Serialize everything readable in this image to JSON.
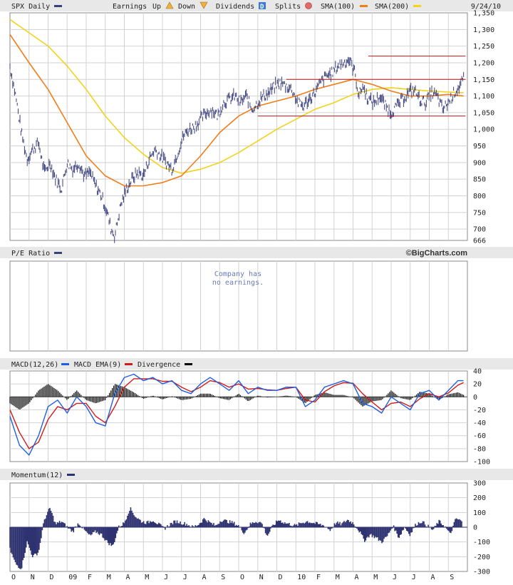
{
  "header": {
    "ticker_label": "SPX Daily",
    "earnings_label": "Earnings",
    "up_label": "Up",
    "down_label": "Down",
    "dividends_label": "Dividends",
    "dividends_badge": "D",
    "splits_label": "Splits",
    "sma100_label": "SMA(100)",
    "sma200_label": "SMA(200)",
    "date": "9/24/10"
  },
  "colors": {
    "price": "#3a3f7d",
    "sma100": "#f07d1a",
    "sma200": "#f2d21a",
    "macd": "#1f5fe0",
    "macd_ema": "#d11a1a",
    "divergence": "#000000",
    "momentum": "#2e3270",
    "resistance": "#b01818"
  },
  "pe_panel": {
    "title": "P/E Ratio",
    "brand": "©BigCharts.com",
    "note_line1": "Company has",
    "note_line2": "no earnings."
  },
  "macd_panel": {
    "title": "MACD(12,26)",
    "ema_label": "MACD EMA(9)",
    "divergence_label": "Divergence"
  },
  "momentum_panel": {
    "title": "Momentum(12)"
  },
  "chart_data": [
    {
      "type": "line",
      "title": "SPX Daily",
      "ylim": [
        666,
        1350
      ],
      "y_ticks": [
        "1,350",
        "1,300",
        "1,250",
        "1,200",
        "1,150",
        "1,100",
        "1,050",
        "1,000",
        "950",
        "900",
        "850",
        "800",
        "750",
        "700",
        "666"
      ],
      "y_tick_values": [
        1350,
        1300,
        1250,
        1200,
        1150,
        1100,
        1050,
        1000,
        950,
        900,
        850,
        800,
        750,
        700,
        666
      ],
      "x_ticks": [
        "O",
        "N",
        "D",
        "09",
        "F",
        "M",
        "A",
        "M",
        "J",
        "J",
        "A",
        "S",
        "O",
        "N",
        "D",
        "10",
        "F",
        "M",
        "A",
        "M",
        "J",
        "J",
        "A",
        "S"
      ],
      "series": [
        {
          "name": "SPX",
          "x": [
            0,
            0.3,
            0.6,
            0.9,
            1.2,
            1.5,
            1.8,
            2.1,
            2.4,
            2.7,
            3.0,
            3.3,
            3.6,
            3.9,
            4.2,
            4.5,
            4.8,
            5.1,
            5.3,
            5.5,
            5.8,
            6.1,
            6.4,
            6.7,
            7.0,
            7.3,
            7.6,
            7.9,
            8.2,
            8.5,
            8.8,
            9.1,
            9.4,
            9.7,
            10.0,
            10.3,
            10.6,
            10.9,
            11.2,
            11.5,
            11.8,
            12.1,
            12.4,
            12.7,
            13.0,
            13.3,
            13.6,
            13.9,
            14.2,
            14.5,
            14.8,
            15.1,
            15.4,
            15.7,
            16.0,
            16.3,
            16.6,
            16.9,
            17.2,
            17.5,
            17.8,
            18.1,
            18.3,
            18.5,
            18.8,
            19.1,
            19.4,
            19.7,
            20.0,
            20.3,
            20.6,
            20.9,
            21.2,
            21.5,
            21.8,
            22.1,
            22.4,
            22.7,
            23.0,
            23.3,
            23.6,
            23.8
          ],
          "values": [
            1190,
            1100,
            990,
            910,
            940,
            960,
            870,
            900,
            850,
            820,
            900,
            880,
            900,
            860,
            870,
            830,
            800,
            750,
            700,
            680,
            770,
            820,
            850,
            870,
            860,
            910,
            940,
            920,
            900,
            880,
            930,
            980,
            1000,
            1010,
            1030,
            1050,
            1060,
            1040,
            1080,
            1090,
            1100,
            1080,
            1100,
            1060,
            1080,
            1100,
            1110,
            1130,
            1140,
            1130,
            1120,
            1080,
            1070,
            1090,
            1110,
            1140,
            1160,
            1170,
            1190,
            1200,
            1210,
            1170,
            1100,
            1130,
            1090,
            1080,
            1100,
            1070,
            1050,
            1070,
            1090,
            1110,
            1120,
            1090,
            1080,
            1110,
            1100,
            1060,
            1080,
            1110,
            1130,
            1150
          ]
        },
        {
          "name": "SMA(100)",
          "x": [
            0,
            1,
            2,
            3,
            4,
            5,
            6,
            7,
            8,
            9,
            10,
            11,
            12,
            13,
            14,
            15,
            16,
            17,
            18,
            19,
            20,
            21,
            22,
            23,
            23.8
          ],
          "values": [
            1285,
            1200,
            1120,
            1020,
            920,
            860,
            830,
            830,
            840,
            860,
            920,
            990,
            1040,
            1070,
            1085,
            1100,
            1120,
            1135,
            1150,
            1135,
            1115,
            1100,
            1100,
            1105,
            1100
          ]
        },
        {
          "name": "SMA(200)",
          "x": [
            0,
            1,
            2,
            3,
            4,
            5,
            6,
            7,
            8,
            9,
            10,
            11,
            12,
            13,
            14,
            15,
            16,
            17,
            18,
            19,
            20,
            21,
            22,
            23,
            23.8
          ],
          "values": [
            1330,
            1290,
            1250,
            1190,
            1120,
            1040,
            975,
            925,
            885,
            868,
            880,
            900,
            930,
            965,
            1000,
            1030,
            1060,
            1080,
            1105,
            1120,
            1125,
            1120,
            1115,
            1112,
            1110
          ]
        }
      ],
      "reference_lines": [
        {
          "y": 1220,
          "x_start": 18.8,
          "x_end": 23.9
        },
        {
          "y": 1150,
          "x_start": 14.5,
          "x_end": 23.9
        },
        {
          "y": 1040,
          "x_start": 13.0,
          "x_end": 23.9
        }
      ]
    },
    {
      "type": "line",
      "title": "MACD(12,26)",
      "ylim": [
        -100,
        40
      ],
      "y_ticks": [
        "40",
        "20",
        "0",
        "-20",
        "-40",
        "-60",
        "-80",
        "-100"
      ],
      "y_tick_values": [
        40,
        20,
        0,
        -20,
        -40,
        -60,
        -80,
        -100
      ],
      "series": [
        {
          "name": "MACD(12,26)",
          "x": [
            0,
            0.5,
            1.0,
            1.5,
            2.0,
            2.5,
            3.0,
            3.5,
            4.0,
            4.5,
            5.0,
            5.5,
            6.0,
            6.5,
            7.0,
            7.5,
            8.0,
            8.5,
            9.0,
            9.5,
            10.0,
            10.5,
            11.0,
            11.5,
            12.0,
            12.5,
            13.0,
            13.5,
            14.0,
            14.5,
            15.0,
            15.5,
            16.0,
            16.5,
            17.0,
            17.5,
            18.0,
            18.5,
            19.0,
            19.5,
            20.0,
            20.5,
            21.0,
            21.5,
            22.0,
            22.5,
            23.0,
            23.5,
            23.8
          ],
          "values": [
            -30,
            -75,
            -90,
            -60,
            -15,
            -5,
            -25,
            0,
            -15,
            -40,
            -45,
            5,
            30,
            35,
            25,
            30,
            20,
            25,
            10,
            5,
            20,
            30,
            20,
            10,
            25,
            5,
            15,
            10,
            10,
            15,
            15,
            -15,
            -5,
            15,
            20,
            25,
            20,
            -10,
            -15,
            -25,
            0,
            -10,
            -20,
            5,
            10,
            -5,
            10,
            25,
            25
          ]
        },
        {
          "name": "MACD EMA(9)",
          "x": [
            0,
            0.5,
            1.0,
            1.5,
            2.0,
            2.5,
            3.0,
            3.5,
            4.0,
            4.5,
            5.0,
            5.5,
            6.0,
            6.5,
            7.0,
            7.5,
            8.0,
            8.5,
            9.0,
            9.5,
            10.0,
            10.5,
            11.0,
            11.5,
            12.0,
            12.5,
            13.0,
            13.5,
            14.0,
            14.5,
            15.0,
            15.5,
            16.0,
            16.5,
            17.0,
            17.5,
            18.0,
            18.5,
            19.0,
            19.5,
            20.0,
            20.5,
            21.0,
            21.5,
            22.0,
            22.5,
            23.0,
            23.5,
            23.8
          ],
          "values": [
            -20,
            -55,
            -80,
            -70,
            -35,
            -15,
            -20,
            -10,
            -10,
            -30,
            -40,
            -15,
            15,
            28,
            28,
            28,
            24,
            24,
            15,
            8,
            15,
            25,
            22,
            15,
            20,
            12,
            13,
            11,
            10,
            13,
            15,
            -5,
            -8,
            8,
            17,
            22,
            21,
            5,
            -8,
            -20,
            -10,
            -8,
            -15,
            -3,
            5,
            0,
            6,
            18,
            22
          ]
        },
        {
          "name": "Divergence",
          "x": [
            0,
            0.5,
            1.0,
            1.5,
            2.0,
            2.5,
            3.0,
            3.5,
            4.0,
            4.5,
            5.0,
            5.5,
            6.0,
            6.5,
            7.0,
            7.5,
            8.0,
            8.5,
            9.0,
            9.5,
            10.0,
            10.5,
            11.0,
            11.5,
            12.0,
            12.5,
            13.0,
            13.5,
            14.0,
            14.5,
            15.0,
            15.5,
            16.0,
            16.5,
            17.0,
            17.5,
            18.0,
            18.5,
            19.0,
            19.5,
            20.0,
            20.5,
            21.0,
            21.5,
            22.0,
            22.5,
            23.0,
            23.5,
            23.8
          ],
          "values": [
            -10,
            -20,
            -10,
            10,
            20,
            10,
            -5,
            10,
            -5,
            -10,
            -5,
            20,
            15,
            7,
            -3,
            2,
            -4,
            1,
            -5,
            -3,
            5,
            5,
            -2,
            -5,
            5,
            -7,
            2,
            -1,
            0,
            2,
            0,
            -10,
            3,
            7,
            3,
            3,
            -1,
            -15,
            -7,
            -5,
            10,
            -2,
            -5,
            8,
            5,
            -5,
            4,
            7,
            3
          ]
        }
      ]
    },
    {
      "type": "area",
      "title": "Momentum(12)",
      "ylim": [
        -300,
        300
      ],
      "y_ticks": [
        "300",
        "200",
        "100",
        "0",
        "-100",
        "-200",
        "-300"
      ],
      "y_tick_values": [
        300,
        200,
        100,
        0,
        -100,
        -200,
        -300
      ],
      "x_ticks": [
        "O",
        "N",
        "D",
        "09",
        "F",
        "M",
        "A",
        "M",
        "J",
        "J",
        "A",
        "S",
        "O",
        "N",
        "D",
        "10",
        "F",
        "M",
        "A",
        "M",
        "J",
        "J",
        "A",
        "S"
      ],
      "series": [
        {
          "name": "Momentum(12)",
          "x": [
            0,
            0.3,
            0.6,
            0.9,
            1.2,
            1.5,
            1.8,
            2.1,
            2.4,
            2.7,
            3.0,
            3.3,
            3.6,
            3.9,
            4.2,
            4.5,
            4.8,
            5.1,
            5.4,
            5.7,
            6.0,
            6.3,
            6.6,
            6.9,
            7.2,
            7.5,
            7.8,
            8.1,
            8.4,
            8.7,
            9.0,
            9.3,
            9.6,
            9.9,
            10.2,
            10.5,
            10.8,
            11.1,
            11.4,
            11.7,
            12.0,
            12.3,
            12.6,
            12.9,
            13.2,
            13.5,
            13.8,
            14.1,
            14.4,
            14.7,
            15.0,
            15.3,
            15.6,
            15.9,
            16.2,
            16.5,
            16.8,
            17.1,
            17.4,
            17.7,
            18.0,
            18.3,
            18.6,
            18.9,
            19.2,
            19.5,
            19.8,
            20.1,
            20.4,
            20.7,
            21.0,
            21.3,
            21.6,
            21.9,
            22.2,
            22.5,
            22.8,
            23.1,
            23.4,
            23.7
          ],
          "values": [
            -150,
            -250,
            -280,
            -100,
            -200,
            -170,
            50,
            130,
            20,
            40,
            0,
            -30,
            30,
            -20,
            -60,
            -30,
            -50,
            -100,
            -130,
            0,
            30,
            130,
            70,
            40,
            30,
            50,
            20,
            -10,
            20,
            40,
            30,
            20,
            0,
            20,
            60,
            30,
            10,
            50,
            40,
            30,
            10,
            -40,
            20,
            40,
            30,
            -60,
            10,
            50,
            30,
            20,
            10,
            30,
            40,
            30,
            20,
            10,
            -20,
            30,
            20,
            50,
            30,
            -20,
            -90,
            -50,
            -70,
            -100,
            -60,
            10,
            -70,
            0,
            -50,
            20,
            40,
            10,
            -20,
            40,
            10,
            -50,
            60,
            40
          ]
        }
      ]
    }
  ]
}
